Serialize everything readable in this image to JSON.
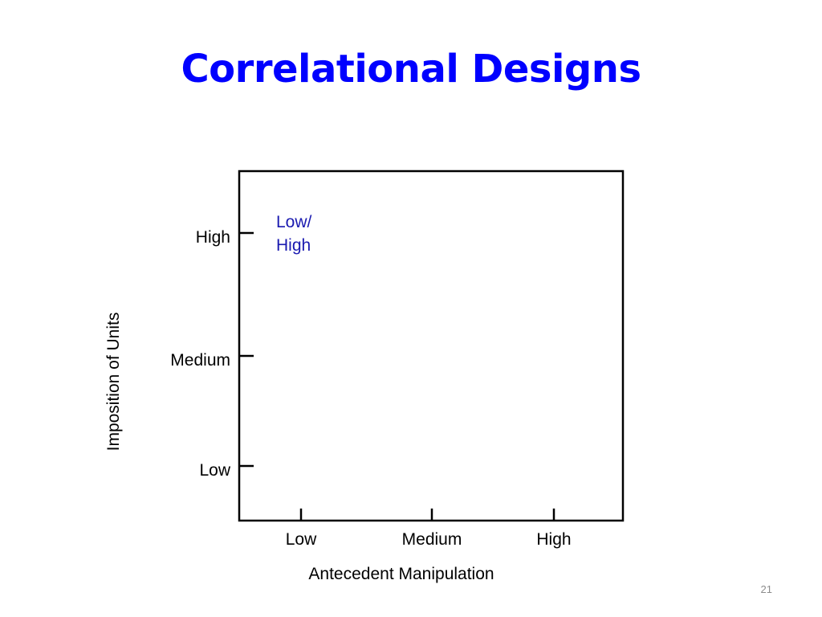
{
  "slide": {
    "title": "Correlational Designs",
    "page_number": "21"
  },
  "colors": {
    "title": "#0000ff",
    "annotation": "#1a1ab0",
    "axis": "#000000"
  },
  "chart_data": {
    "type": "scatter",
    "title": "",
    "xlabel": "Antecedent Manipulation",
    "ylabel": "Imposition of Units",
    "x_categories": [
      "Low",
      "Medium",
      "High"
    ],
    "y_categories": [
      "Low",
      "Medium",
      "High"
    ],
    "grid": false,
    "legend": "none",
    "annotations": [
      {
        "lines": [
          "Low/",
          "High"
        ],
        "x": "Low",
        "y": "High"
      }
    ]
  }
}
